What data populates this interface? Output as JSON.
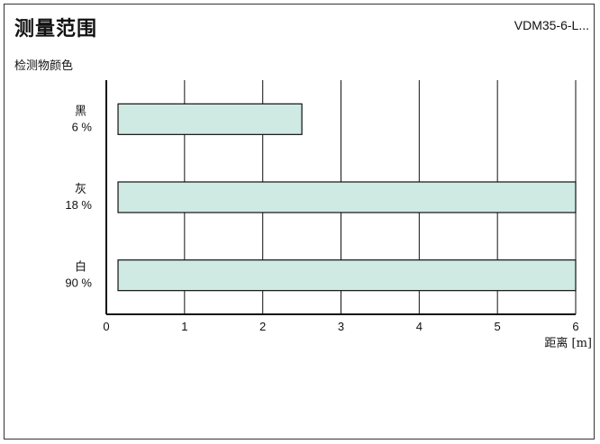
{
  "header": {
    "title": "测量范围",
    "model": "VDM35-6-L..."
  },
  "colors": {
    "bar_fill": "#cfe9e3",
    "bar_stroke": "#111111",
    "grid": "#111111"
  },
  "chart_data": {
    "type": "bar",
    "orientation": "horizontal",
    "title": "测量范围",
    "legend_title": "检测物颜色",
    "xlabel": "距离 [m]",
    "ylabel": "",
    "xlim": [
      0,
      6
    ],
    "x_ticks": [
      "0",
      "1",
      "2",
      "3",
      "4",
      "5",
      "6"
    ],
    "grid": true,
    "categories": [
      {
        "name": "黑",
        "percent": "6 %",
        "start": 0.15,
        "end": 2.5
      },
      {
        "name": "灰",
        "percent": "18 %",
        "start": 0.15,
        "end": 6
      },
      {
        "name": "白",
        "percent": "90 %",
        "start": 0.15,
        "end": 6
      }
    ]
  }
}
